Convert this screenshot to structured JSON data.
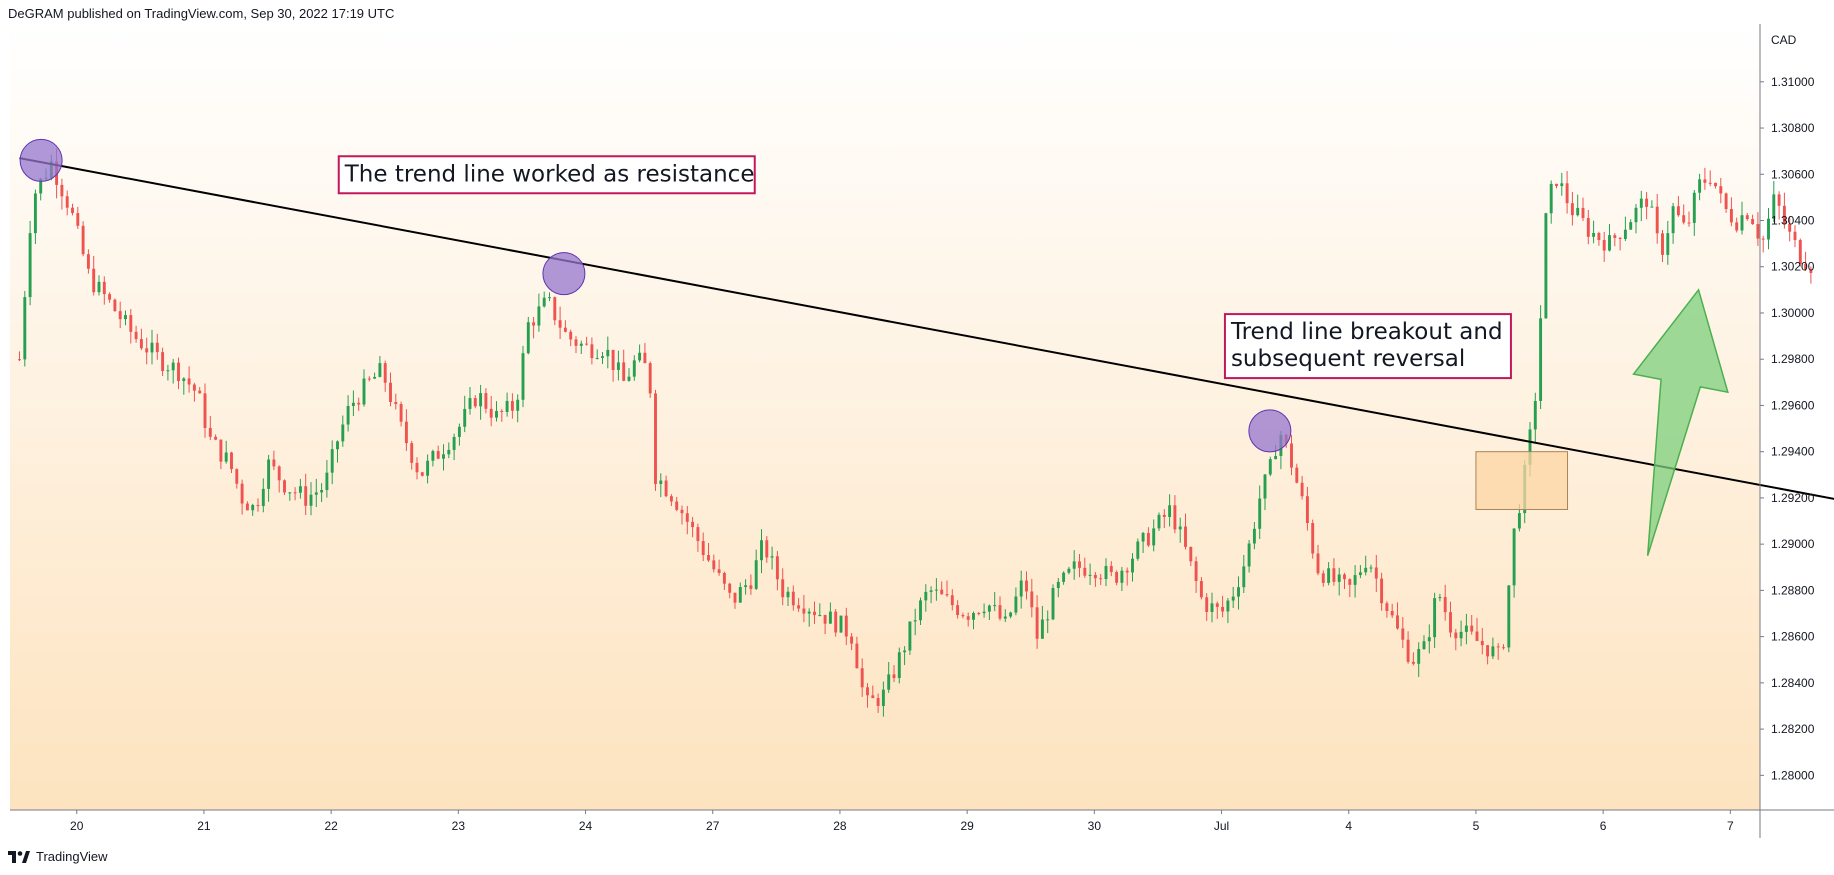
{
  "header": {
    "published_text": "DeGRAM published on TradingView.com, Sep 30, 2022 17:19 UTC"
  },
  "footer": {
    "logo_icon": "tradingview-logo-icon",
    "brand": "TradingView"
  },
  "colors": {
    "up": "#26a050",
    "down": "#ef5350",
    "bg_top": "#ffffff",
    "bg_bottom": "#fde3bf",
    "trend_line": "#000000",
    "touch_circle": "#9575cd",
    "box_fill": "#fdd5a4",
    "box_stroke": "#a88455",
    "arrow_fill": "#7ccf7c",
    "annotation_border": "#c2185b"
  },
  "chart_data": {
    "type": "candlestick",
    "currency_label": "CAD",
    "ylim": [
      1.2785,
      1.3125
    ],
    "y_ticks": [
      "1.31000",
      "1.30800",
      "1.30600",
      "1.30400",
      "1.30200",
      "1.30000",
      "1.29800",
      "1.29600",
      "1.29400",
      "1.29200",
      "1.29000",
      "1.28800",
      "1.28600",
      "1.28400",
      "1.28200",
      "1.28000"
    ],
    "x_ticks": [
      {
        "label": "20",
        "day_index": 1
      },
      {
        "label": "21",
        "day_index": 2
      },
      {
        "label": "22",
        "day_index": 3
      },
      {
        "label": "23",
        "day_index": 4
      },
      {
        "label": "24",
        "day_index": 5
      },
      {
        "label": "27",
        "day_index": 6
      },
      {
        "label": "28",
        "day_index": 7
      },
      {
        "label": "29",
        "day_index": 8
      },
      {
        "label": "30",
        "day_index": 9
      },
      {
        "label": "Jul",
        "day_index": 10
      },
      {
        "label": "4",
        "day_index": 11
      },
      {
        "label": "5",
        "day_index": 12
      },
      {
        "label": "6",
        "day_index": 13
      },
      {
        "label": "7",
        "day_index": 14
      }
    ],
    "candles_per_day": 24,
    "x_start_day": 0.55,
    "x_end_day": 15.2,
    "close_path": [
      [
        0.55,
        1.298
      ],
      [
        0.65,
        1.305
      ],
      [
        0.8,
        1.3065
      ],
      [
        0.95,
        1.3045
      ],
      [
        1.1,
        1.3015
      ],
      [
        1.25,
        1.3005
      ],
      [
        1.45,
        1.299
      ],
      [
        1.65,
        1.298
      ],
      [
        1.8,
        1.2975
      ],
      [
        1.95,
        1.2965
      ],
      [
        2.05,
        1.2945
      ],
      [
        2.2,
        1.2935
      ],
      [
        2.3,
        1.292
      ],
      [
        2.4,
        1.2915
      ],
      [
        2.5,
        1.2935
      ],
      [
        2.65,
        1.2925
      ],
      [
        2.8,
        1.292
      ],
      [
        2.95,
        1.2925
      ],
      [
        3.05,
        1.2945
      ],
      [
        3.15,
        1.296
      ],
      [
        3.3,
        1.297
      ],
      [
        3.4,
        1.2975
      ],
      [
        3.55,
        1.295
      ],
      [
        3.7,
        1.293
      ],
      [
        3.85,
        1.294
      ],
      [
        4.0,
        1.295
      ],
      [
        4.15,
        1.2965
      ],
      [
        4.3,
        1.2955
      ],
      [
        4.45,
        1.296
      ],
      [
        4.55,
        1.2995
      ],
      [
        4.7,
        1.3005
      ],
      [
        4.85,
        1.299
      ],
      [
        5.0,
        1.2985
      ],
      [
        5.15,
        1.2985
      ],
      [
        5.3,
        1.297
      ],
      [
        5.4,
        1.298
      ],
      [
        5.5,
        1.2975
      ],
      [
        5.55,
        1.293
      ],
      [
        5.7,
        1.292
      ],
      [
        5.85,
        1.2905
      ],
      [
        6.0,
        1.289
      ],
      [
        6.15,
        1.2875
      ],
      [
        6.3,
        1.2885
      ],
      [
        6.4,
        1.29
      ],
      [
        6.55,
        1.288
      ],
      [
        6.7,
        1.2875
      ],
      [
        6.85,
        1.287
      ],
      [
        7.0,
        1.2865
      ],
      [
        7.1,
        1.286
      ],
      [
        7.2,
        1.283
      ],
      [
        7.35,
        1.2835
      ],
      [
        7.5,
        1.2855
      ],
      [
        7.6,
        1.287
      ],
      [
        7.7,
        1.288
      ],
      [
        7.85,
        1.2875
      ],
      [
        8.0,
        1.287
      ],
      [
        8.15,
        1.2875
      ],
      [
        8.3,
        1.2865
      ],
      [
        8.45,
        1.2885
      ],
      [
        8.55,
        1.286
      ],
      [
        8.7,
        1.288
      ],
      [
        8.85,
        1.289
      ],
      [
        9.0,
        1.289
      ],
      [
        9.15,
        1.2885
      ],
      [
        9.3,
        1.2895
      ],
      [
        9.45,
        1.2905
      ],
      [
        9.6,
        1.2915
      ],
      [
        9.7,
        1.29
      ],
      [
        9.85,
        1.2875
      ],
      [
        10.0,
        1.287
      ],
      [
        10.1,
        1.288
      ],
      [
        10.2,
        1.2895
      ],
      [
        10.3,
        1.292
      ],
      [
        10.4,
        1.2935
      ],
      [
        10.45,
        1.295
      ],
      [
        10.55,
        1.2935
      ],
      [
        10.65,
        1.2915
      ],
      [
        10.75,
        1.289
      ],
      [
        10.85,
        1.2885
      ],
      [
        11.0,
        1.288
      ],
      [
        11.15,
        1.2895
      ],
      [
        11.25,
        1.288
      ],
      [
        11.4,
        1.286
      ],
      [
        11.5,
        1.285
      ],
      [
        11.6,
        1.2855
      ],
      [
        11.7,
        1.288
      ],
      [
        11.8,
        1.2865
      ],
      [
        11.95,
        1.286
      ],
      [
        12.1,
        1.2855
      ],
      [
        12.2,
        1.285
      ],
      [
        12.3,
        1.2905
      ],
      [
        12.4,
        1.2935
      ],
      [
        12.48,
        1.297
      ],
      [
        12.55,
        1.304
      ],
      [
        12.62,
        1.306
      ],
      [
        12.75,
        1.3045
      ],
      [
        12.9,
        1.3035
      ],
      [
        13.05,
        1.303
      ],
      [
        13.2,
        1.304
      ],
      [
        13.35,
        1.305
      ],
      [
        13.45,
        1.3025
      ],
      [
        13.55,
        1.3045
      ],
      [
        13.65,
        1.3035
      ],
      [
        13.75,
        1.3055
      ],
      [
        13.85,
        1.306
      ],
      [
        13.95,
        1.3045
      ],
      [
        14.05,
        1.304
      ],
      [
        14.15,
        1.3045
      ],
      [
        14.25,
        1.303
      ],
      [
        14.35,
        1.305
      ],
      [
        14.45,
        1.3035
      ],
      [
        14.55,
        1.3025
      ],
      [
        14.65,
        1.302
      ]
    ],
    "trend_line": {
      "from": [
        0.55,
        1.3067
      ],
      "to": [
        15.55,
        1.2912
      ]
    },
    "touch_points": [
      [
        0.72,
        1.3066
      ],
      [
        4.83,
        1.3017
      ],
      [
        10.38,
        1.2949
      ]
    ],
    "breakout_box": {
      "x0": 12.0,
      "x1": 12.72,
      "y0": 1.2915,
      "y1": 1.294
    },
    "reversal_arrow": {
      "tail": [
        13.35,
        1.2895
      ],
      "head": [
        13.75,
        1.301
      ]
    },
    "annotations": [
      {
        "text": "The trend line worked as resistance",
        "day": 4.75,
        "price": 1.306
      },
      {
        "lines": [
          "Trend line breakout and",
          "subsequent reversal"
        ],
        "day": 10.75,
        "price": 1.299
      }
    ]
  }
}
